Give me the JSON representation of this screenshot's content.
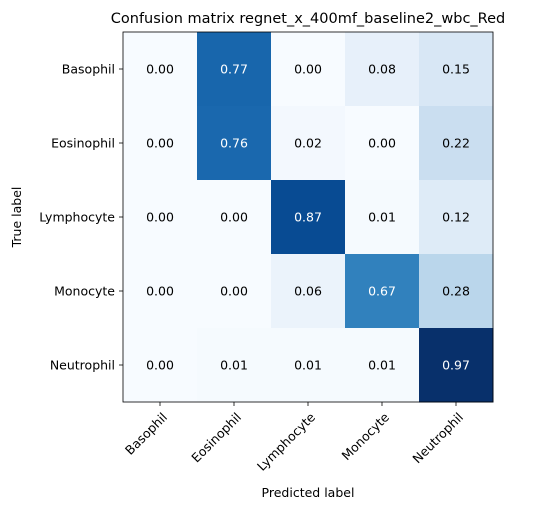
{
  "chart_data": {
    "type": "heatmap",
    "title": "Confusion matrix regnet_x_400mf_baseline2_wbc_Red",
    "xlabel": "Predicted label",
    "ylabel": "True label",
    "x_categories": [
      "Basophil",
      "Eosinophil",
      "Lymphocyte",
      "Monocyte",
      "Neutrophil"
    ],
    "y_categories": [
      "Basophil",
      "Eosinophil",
      "Lymphocyte",
      "Monocyte",
      "Neutrophil"
    ],
    "values": [
      [
        0.0,
        0.77,
        0.0,
        0.08,
        0.15
      ],
      [
        0.0,
        0.76,
        0.02,
        0.0,
        0.22
      ],
      [
        0.0,
        0.0,
        0.87,
        0.01,
        0.12
      ],
      [
        0.0,
        0.0,
        0.06,
        0.67,
        0.28
      ],
      [
        0.0,
        0.01,
        0.01,
        0.01,
        0.97
      ]
    ],
    "value_labels": [
      [
        "0.00",
        "0.77",
        "0.00",
        "0.08",
        "0.15"
      ],
      [
        "0.00",
        "0.76",
        "0.02",
        "0.00",
        "0.22"
      ],
      [
        "0.00",
        "0.00",
        "0.87",
        "0.01",
        "0.12"
      ],
      [
        "0.00",
        "0.00",
        "0.06",
        "0.67",
        "0.28"
      ],
      [
        "0.00",
        "0.01",
        "0.01",
        "0.01",
        "0.97"
      ]
    ],
    "colormap": "Blues",
    "x_tick_rotation": 45,
    "grid": false,
    "legend": false
  }
}
